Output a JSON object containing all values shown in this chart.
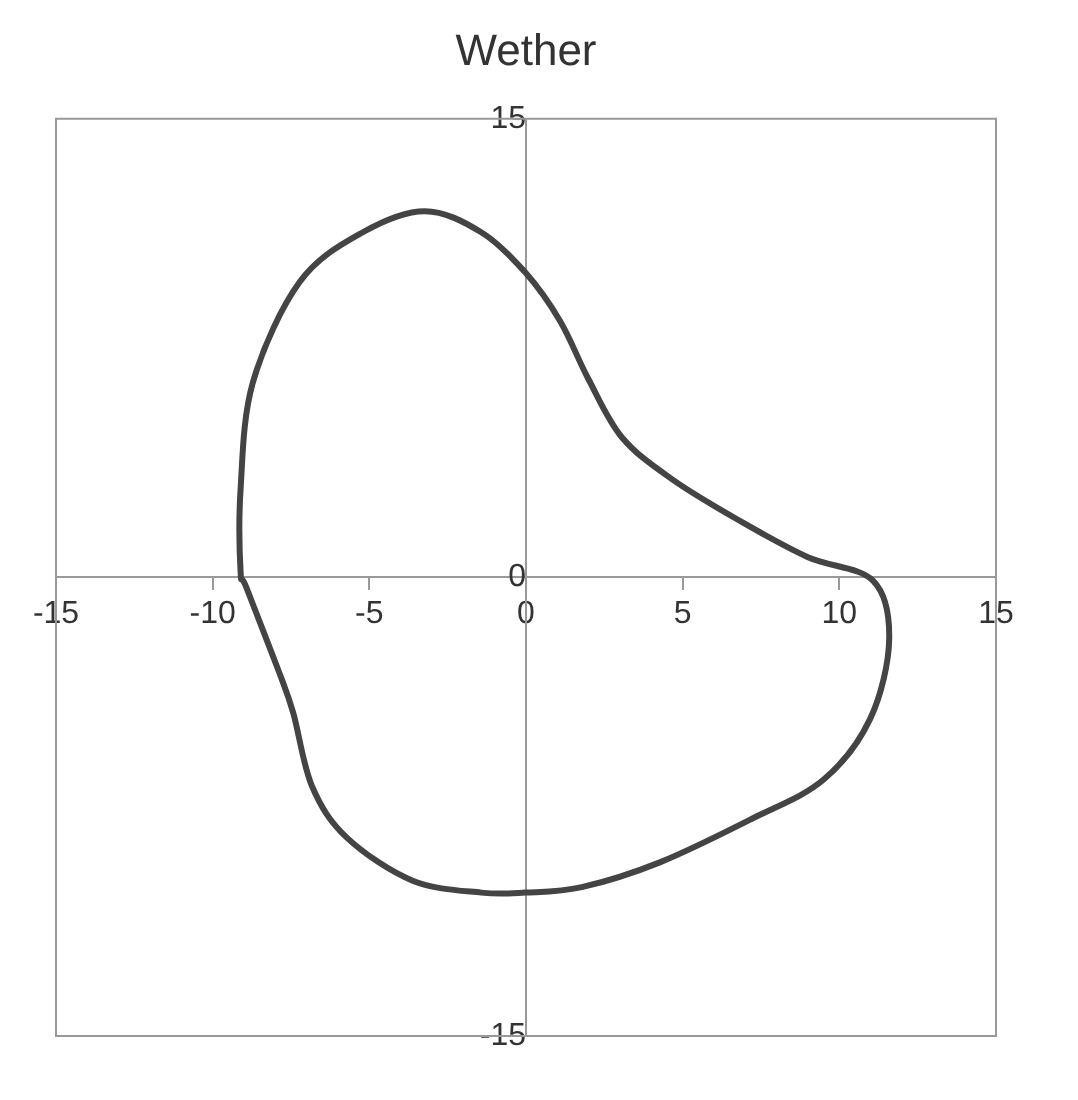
{
  "chart_data": {
    "type": "line",
    "title": "Wether",
    "xlim": [
      -15,
      15
    ],
    "ylim": [
      -15,
      15
    ],
    "xticks": [
      -15,
      -10,
      -5,
      0,
      5,
      10,
      15
    ],
    "yticks": [
      -15,
      0,
      15
    ],
    "grid": false,
    "legend": false
  }
}
